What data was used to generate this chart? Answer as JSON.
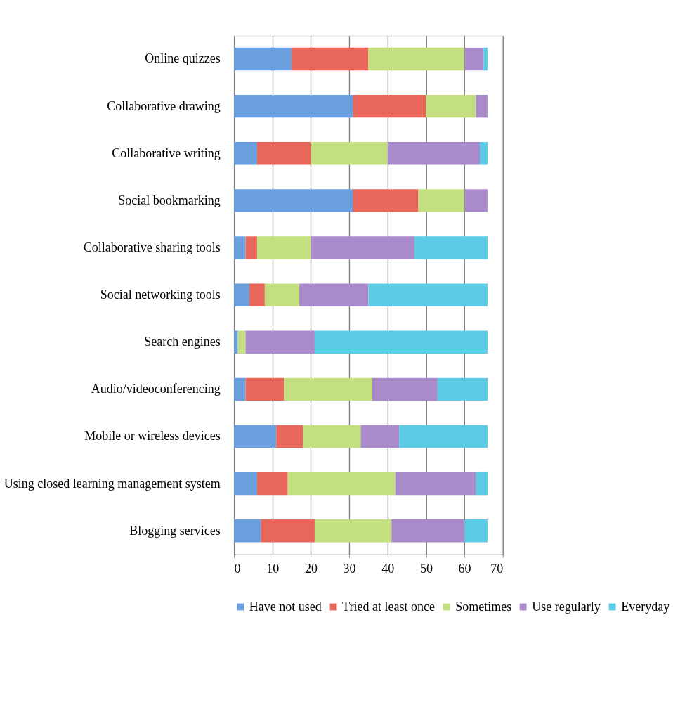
{
  "chart_data": {
    "type": "bar",
    "orientation": "horizontal",
    "stacked": true,
    "categories": [
      "Online quizzes",
      "Collaborative drawing",
      "Collaborative writing",
      "Social bookmarking",
      "Collaborative sharing tools",
      "Social networking tools",
      "Search engines",
      "Audio/videoconferencing",
      "Mobile or wireless devices",
      "Using closed learning management system",
      "Blogging services"
    ],
    "series": [
      {
        "name": "Have not used",
        "color": "#6a9fe0",
        "values": [
          15,
          31,
          6,
          31,
          3,
          4,
          1,
          3,
          11,
          6,
          7
        ]
      },
      {
        "name": "Tried at least once",
        "color": "#e8665a",
        "values": [
          20,
          19,
          14,
          17,
          3,
          4,
          0,
          10,
          7,
          8,
          14
        ]
      },
      {
        "name": "Sometimes",
        "color": "#c3df80",
        "values": [
          25,
          13,
          20,
          12,
          14,
          9,
          2,
          23,
          15,
          28,
          20
        ]
      },
      {
        "name": "Use regularly",
        "color": "#a98bcb",
        "values": [
          5,
          3,
          24,
          6,
          27,
          18,
          18,
          17,
          10,
          21,
          19
        ]
      },
      {
        "name": "Everyday",
        "color": "#5ccbe6",
        "values": [
          1,
          0,
          2,
          0,
          19,
          31,
          45,
          13,
          23,
          3,
          6
        ]
      }
    ],
    "xlim": [
      0,
      70
    ],
    "xticks": [
      0,
      10,
      20,
      30,
      40,
      50,
      60,
      70
    ],
    "grid": "x",
    "legend": "bottom"
  }
}
